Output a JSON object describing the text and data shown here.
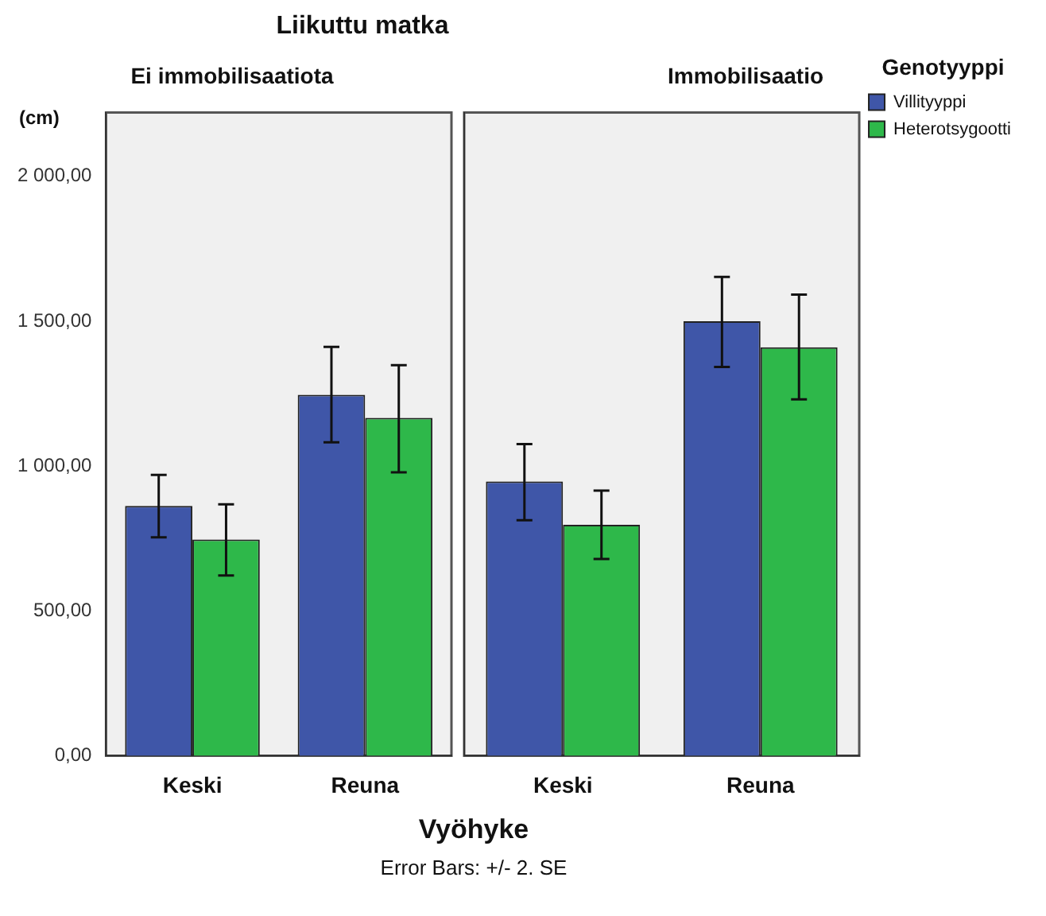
{
  "chart_data": [
    {
      "type": "bar",
      "title": "Liikuttu matka",
      "subtitle": "Ei immobilisaatiota",
      "xlabel": "Vyöhyke",
      "ylabel": "(cm)",
      "annotations": [
        "Error Bars: +/- 2. SE"
      ],
      "categories": [
        "Keski",
        "Reuna"
      ],
      "series": [
        {
          "color": "#3f56a8",
          "values": [
            862,
            1246
          ],
          "errors": [
            [
              754,
              969
            ],
            [
              1082,
              1411
            ]
          ]
        },
        {
          "color": "#2eb84a",
          "values": [
            746,
            1166
          ],
          "errors": [
            [
              622,
              868
            ],
            [
              978,
              1348
            ]
          ]
        }
      ],
      "ylim": [
        0,
        2220
      ],
      "yticks": [
        {
          "value": 0,
          "label": "0,00"
        },
        {
          "value": 500,
          "label": "500,00"
        },
        {
          "value": 1000,
          "label": "1 000,00"
        },
        {
          "value": 1500,
          "label": "1 500,00"
        },
        {
          "value": 2000,
          "label": "2 000,00"
        }
      ],
      "grid": false
    },
    {
      "type": "bar",
      "subtitle": "Immobilisaatio",
      "legend_title": "Genotyyppi",
      "legend": "top right",
      "categories": [
        "Keski",
        "Reuna"
      ],
      "series": [
        {
          "name": "Villityyppi",
          "color": "#3f56a8",
          "values": [
            947,
            1500
          ],
          "errors": [
            [
              813,
              1076
            ],
            [
              1342,
              1653
            ]
          ]
        },
        {
          "name": "Heterotsygootti",
          "color": "#2eb84a",
          "values": [
            797,
            1410
          ],
          "errors": [
            [
              679,
              915
            ],
            [
              1230,
              1592
            ]
          ]
        }
      ],
      "ylim": [
        0,
        2220
      ],
      "tick_labels": "x",
      "grid": false
    }
  ]
}
